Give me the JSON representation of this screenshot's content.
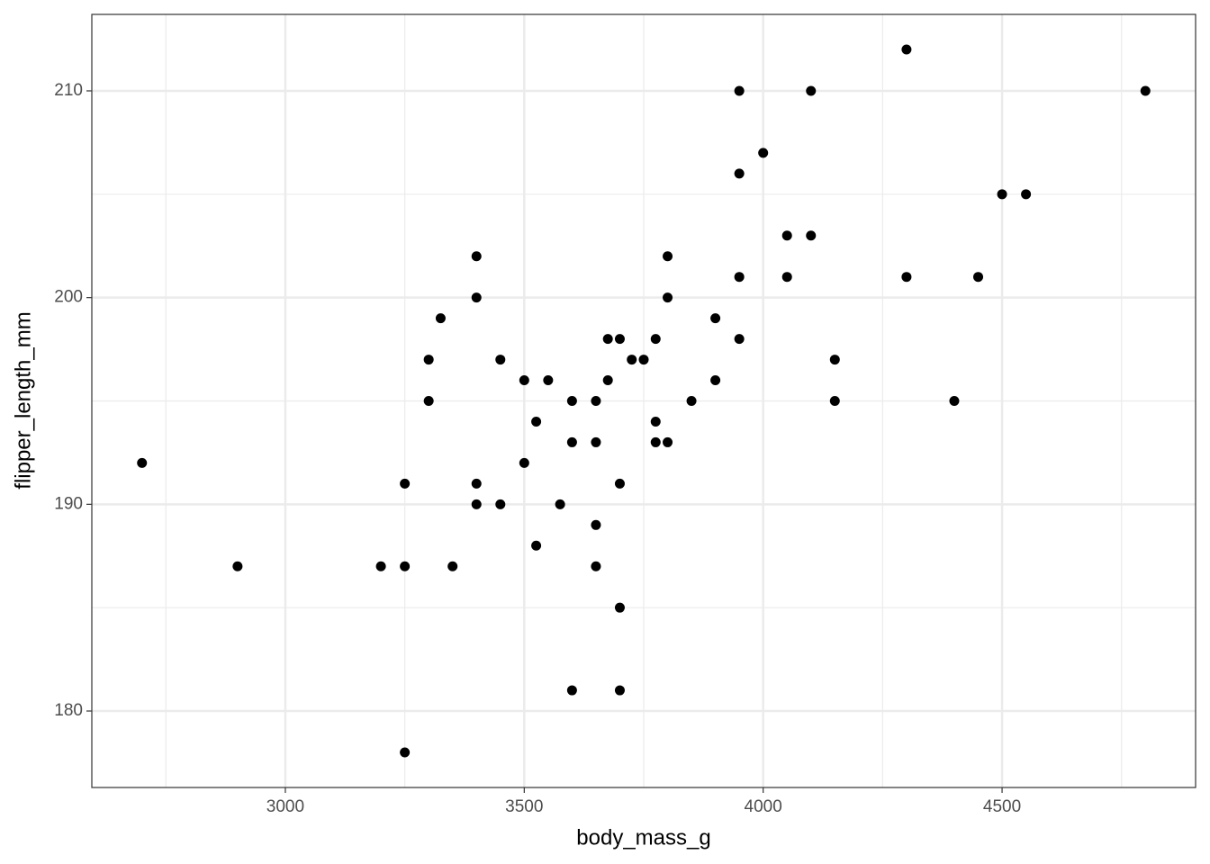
{
  "chart_data": {
    "type": "scatter",
    "x_label": "body_mass_g",
    "y_label": "flipper_length_mm",
    "x": [
      2700,
      2900,
      3200,
      3250,
      3250,
      3250,
      3300,
      3300,
      3325,
      3350,
      3400,
      3400,
      3400,
      3400,
      3450,
      3450,
      3500,
      3500,
      3525,
      3525,
      3550,
      3575,
      3600,
      3600,
      3600,
      3650,
      3650,
      3650,
      3650,
      3675,
      3675,
      3700,
      3700,
      3700,
      3700,
      3725,
      3750,
      3775,
      3775,
      3775,
      3800,
      3800,
      3800,
      3850,
      3900,
      3900,
      3950,
      3950,
      3950,
      3950,
      4000,
      4050,
      4050,
      4100,
      4100,
      4150,
      4150,
      4300,
      4300,
      4400,
      4450,
      4500,
      4550,
      4800
    ],
    "values": [
      192,
      187,
      187,
      187,
      191,
      178,
      197,
      195,
      199,
      187,
      202,
      200,
      191,
      190,
      197,
      190,
      196,
      192,
      194,
      188,
      196,
      190,
      195,
      193,
      181,
      195,
      193,
      189,
      187,
      198,
      196,
      198,
      191,
      185,
      181,
      197,
      197,
      198,
      194,
      193,
      202,
      200,
      193,
      195,
      199,
      196,
      210,
      206,
      201,
      198,
      207,
      203,
      201,
      210,
      203,
      197,
      195,
      212,
      201,
      195,
      201,
      205,
      205,
      210
    ],
    "color": "#000000",
    "xlim": [
      2595,
      4905
    ],
    "ylim": [
      176.3,
      213.7
    ],
    "xticks": [
      3000,
      3500,
      4000,
      4500
    ],
    "yticks": [
      180,
      190,
      200,
      210
    ],
    "xminor": [
      2750,
      3250,
      3750,
      4250,
      4750
    ],
    "yminor": [
      185,
      195,
      205
    ],
    "grid": true
  }
}
